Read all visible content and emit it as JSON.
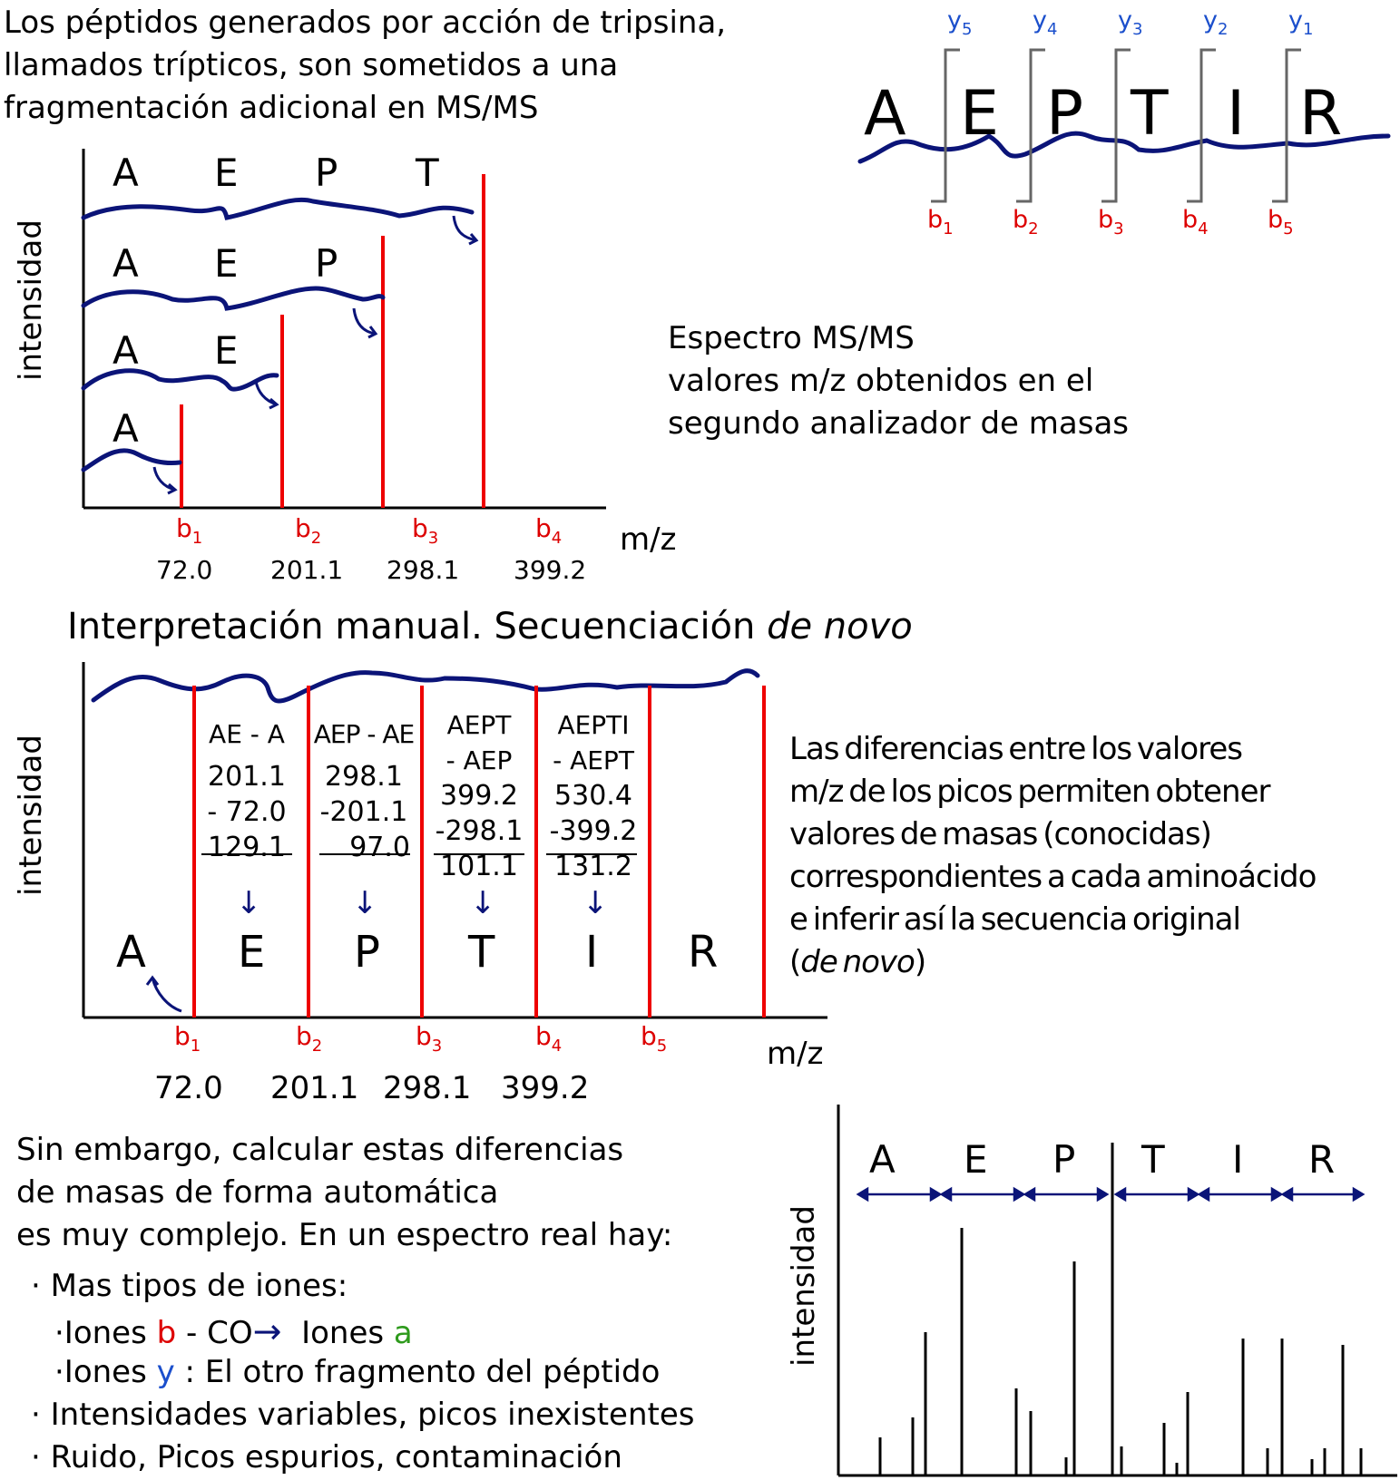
{
  "intro_text": "Los péptidos generados por acción de tripsina,\nllamados trípticos, son sometidos a una\nfragmentación adicional en MS/MS",
  "peptide_top": {
    "residues": [
      "A",
      "E",
      "P",
      "T",
      "I",
      "R"
    ],
    "y_ions": [
      "y5",
      "y4",
      "y3",
      "y2",
      "y1"
    ],
    "b_ions": [
      "b1",
      "b2",
      "b3",
      "b4",
      "b5"
    ]
  },
  "panel1": {
    "ylabel": "intensidad",
    "xlabel": "m/z",
    "fragments": [
      {
        "residues": [
          "A",
          "E",
          "P",
          "T"
        ]
      },
      {
        "residues": [
          "A",
          "E",
          "P"
        ]
      },
      {
        "residues": [
          "A",
          "E"
        ]
      },
      {
        "residues": [
          "A"
        ]
      }
    ],
    "ion_labels": [
      "b1",
      "b2",
      "b3",
      "b4"
    ],
    "mz_values": [
      "72.0",
      "201.1",
      "298.1",
      "399.2"
    ]
  },
  "spectrum_caption": "Espectro MS/MS\nvalores m/z obtenidos en el\nsegundo analizador de masas",
  "section_title_plain": "Interpretación manual. Secuenciación ",
  "section_title_italic": "de novo",
  "panel2": {
    "ylabel": "intensidad",
    "xlabel": "m/z",
    "differences": [
      {
        "label": "AE - A",
        "minuend": "201.1",
        "subtrahend": "- 72.0",
        "result": "129.1",
        "residue": "E"
      },
      {
        "label": "AEP - AE",
        "minuend": "298.1",
        "subtrahend": "-201.1",
        "result": "97.0",
        "residue": "P"
      },
      {
        "label": "AEPT\n- AEP",
        "minuend": "399.2",
        "subtrahend": "-298.1",
        "result": "101.1",
        "residue": "T"
      },
      {
        "label": "AEPTI\n- AEPT",
        "minuend": "530.4",
        "subtrahend": "-399.2",
        "result": "131.2",
        "residue": "I"
      }
    ],
    "first_residue": "A",
    "last_residue": "R",
    "ion_labels": [
      "b1",
      "b2",
      "b3",
      "b4",
      "b5"
    ],
    "mz_values": [
      "72.0",
      "201.1",
      "298.1",
      "399.2"
    ]
  },
  "differences_caption": {
    "text": "Las diferencias entre los valores\nm/z de los picos permiten obtener\nvalores de masas (conocidas)\ncorrespondientes a cada aminoácido\ne inferir así la secuencia original\n(",
    "italic": "de novo",
    "close": ")"
  },
  "however_text": "Sin embargo, calcular estas diferencias\nde masas de forma automática\nes muy complejo. En un espectro real hay:",
  "bullets": {
    "b1": "· Mas tipos de iones:",
    "b2_prefix": "·Iones ",
    "b2_b": "b",
    "b2_mid": " - CO",
    "b2_arrow": "→",
    "b2_suffix": "  Iones ",
    "b2_a": "a",
    "b3_prefix": "·Iones ",
    "b3_y": "y",
    "b3_suffix": " : El otro fragmento del péptido",
    "b4": "· Intensidades variables, picos inexistentes",
    "b5": "· Ruido, Picos espurios, contaminación"
  },
  "panel3": {
    "ylabel": "intensidad",
    "residues": [
      "A",
      "E",
      "P",
      "T",
      "I",
      "R"
    ]
  },
  "colors": {
    "peak": "#ee0000",
    "backbone": "#0b1478",
    "y_ion": "#1b4fcc",
    "b_ion": "#dd0000",
    "a_ion": "#2e9a1c"
  }
}
